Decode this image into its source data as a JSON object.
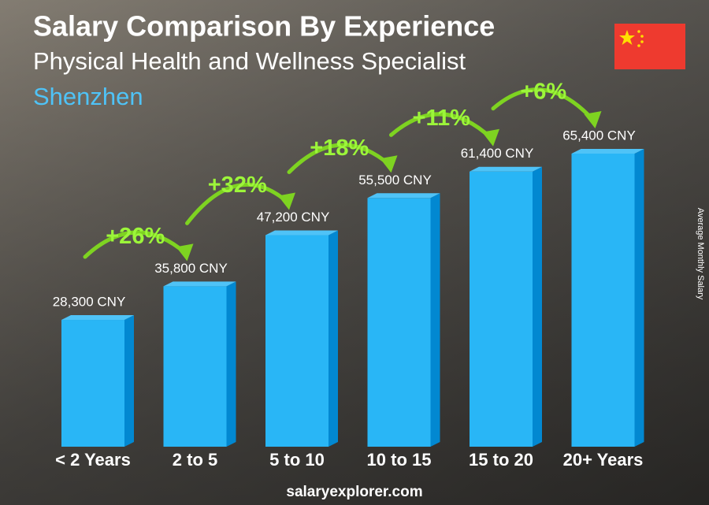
{
  "chart_data": {
    "type": "bar",
    "title": "Salary Comparison By Experience",
    "subtitle": "Physical Health and Wellness Specialist",
    "location": "Shenzhen",
    "y_label": "Average Monthly Salary",
    "categories": [
      "< 2 Years",
      "2 to 5",
      "5 to 10",
      "10 to 15",
      "15 to 20",
      "20+ Years"
    ],
    "values": [
      28300,
      35800,
      47200,
      55500,
      61400,
      65400
    ],
    "value_labels": [
      "28,300 CNY",
      "35,800 CNY",
      "47,200 CNY",
      "55,500 CNY",
      "61,400 CNY",
      "65,400 CNY"
    ],
    "changes": [
      "+26%",
      "+32%",
      "+18%",
      "+11%",
      "+6%"
    ],
    "color": "#29b6f6",
    "footer": "salaryexplorer.com"
  }
}
